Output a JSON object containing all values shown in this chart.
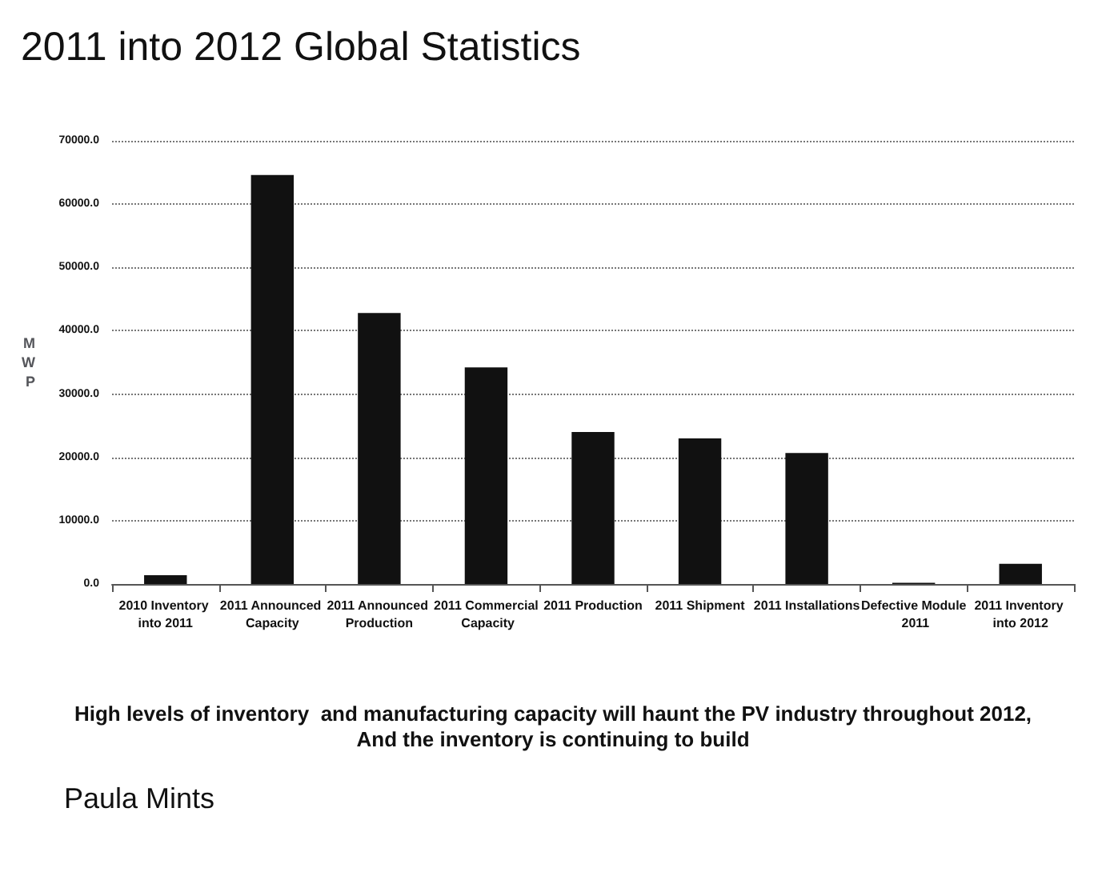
{
  "chart_data": {
    "type": "bar",
    "title": "2011 into 2012 Global Statistics",
    "ylabel": "MWP",
    "categories": [
      "2010 Inventory into 2011",
      "2011 Announced Capacity",
      "2011 Announced Production",
      "2011 Commercial Capacity",
      "2011 Production",
      "2011 Shipment",
      "2011 Installations",
      "Defective Module 2011",
      "2011 Inventory into 2012"
    ],
    "values": [
      1400,
      64600,
      42800,
      34200,
      24000,
      23000,
      20700,
      200,
      3200
    ],
    "color": "#111111",
    "ylim": [
      0,
      70000
    ],
    "yticks": [
      {
        "value": 0,
        "label": "0.0"
      },
      {
        "value": 10000,
        "label": "10000.0"
      },
      {
        "value": 20000,
        "label": "20000.0"
      },
      {
        "value": 30000,
        "label": "30000.0"
      },
      {
        "value": 40000,
        "label": "40000.0"
      },
      {
        "value": 50000,
        "label": "50000.0"
      },
      {
        "value": 60000,
        "label": "60000.0"
      },
      {
        "value": 70000,
        "label": "70000.0"
      }
    ],
    "grid": "y",
    "annotations": [
      "High levels of inventory  and manufacturing capacity will haunt the PV industry throughout 2012,\nAnd the inventory is continuing to build",
      "Paula Mints"
    ]
  }
}
